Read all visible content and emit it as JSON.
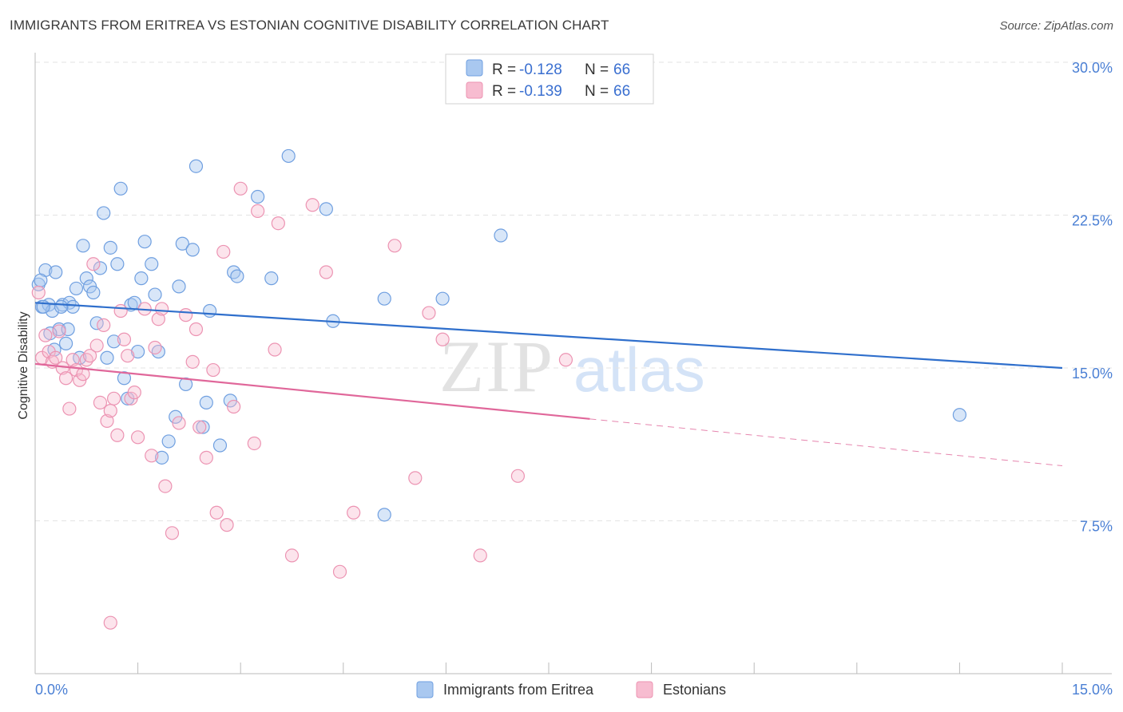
{
  "header": {
    "title": "IMMIGRANTS FROM ERITREA VS ESTONIAN COGNITIVE DISABILITY CORRELATION CHART",
    "source": "Source: ZipAtlas.com"
  },
  "watermark": {
    "zip": "ZIP",
    "atlas": "atlas"
  },
  "legend": {
    "r_label": "R =",
    "n_label": "N =",
    "series": [
      {
        "r": "-0.128",
        "n": "66"
      },
      {
        "r": "-0.139",
        "n": "66"
      }
    ]
  },
  "colors": {
    "blue_fill": "#a9c8f0",
    "blue_stroke": "#6f9fe0",
    "blue_line": "#2f6fcc",
    "pink_fill": "#f7bcd0",
    "pink_stroke": "#ec93b2",
    "pink_line": "#e0679a"
  },
  "chart_data": {
    "type": "scatter",
    "title": "IMMIGRANTS FROM ERITREA VS ESTONIAN COGNITIVE DISABILITY CORRELATION CHART",
    "xlabel": "",
    "ylabel": "Cognitive Disability",
    "xlim": [
      0,
      15
    ],
    "ylim": [
      0,
      30
    ],
    "x_tick_labels": [
      "0.0%",
      "15.0%"
    ],
    "y_ticks": [
      7.5,
      15.0,
      22.5,
      30.0
    ],
    "y_tick_labels": [
      "7.5%",
      "15.0%",
      "22.5%",
      "30.0%"
    ],
    "series": [
      {
        "name": "Immigrants from Eritrea",
        "trend": {
          "x": [
            0,
            15
          ],
          "y": [
            18.2,
            15.0
          ]
        },
        "points": [
          [
            0.05,
            19.1
          ],
          [
            0.1,
            18.0
          ],
          [
            0.15,
            19.8
          ],
          [
            0.2,
            18.1
          ],
          [
            0.25,
            17.8
          ],
          [
            0.3,
            19.7
          ],
          [
            0.35,
            16.9
          ],
          [
            0.4,
            18.1
          ],
          [
            0.45,
            16.2
          ],
          [
            0.5,
            18.2
          ],
          [
            0.55,
            18.0
          ],
          [
            0.6,
            18.9
          ],
          [
            0.65,
            15.5
          ],
          [
            0.7,
            21.0
          ],
          [
            0.75,
            19.4
          ],
          [
            0.8,
            19.0
          ],
          [
            0.85,
            18.7
          ],
          [
            0.9,
            17.2
          ],
          [
            0.95,
            19.9
          ],
          [
            1.0,
            22.6
          ],
          [
            1.05,
            15.5
          ],
          [
            1.1,
            20.9
          ],
          [
            1.15,
            16.3
          ],
          [
            1.2,
            20.1
          ],
          [
            1.25,
            23.8
          ],
          [
            1.3,
            14.5
          ],
          [
            1.35,
            13.5
          ],
          [
            1.4,
            18.1
          ],
          [
            1.45,
            18.2
          ],
          [
            1.5,
            15.8
          ],
          [
            1.55,
            19.4
          ],
          [
            1.6,
            21.2
          ],
          [
            1.7,
            20.1
          ],
          [
            1.75,
            18.6
          ],
          [
            1.8,
            15.8
          ],
          [
            1.85,
            10.6
          ],
          [
            1.95,
            11.4
          ],
          [
            2.05,
            12.6
          ],
          [
            2.1,
            19.0
          ],
          [
            2.15,
            21.1
          ],
          [
            2.2,
            14.2
          ],
          [
            2.3,
            20.8
          ],
          [
            2.35,
            24.9
          ],
          [
            2.45,
            12.1
          ],
          [
            2.5,
            13.3
          ],
          [
            2.55,
            17.8
          ],
          [
            2.7,
            11.2
          ],
          [
            2.85,
            13.4
          ],
          [
            2.9,
            19.7
          ],
          [
            2.95,
            19.5
          ],
          [
            3.25,
            23.4
          ],
          [
            3.45,
            19.4
          ],
          [
            3.7,
            25.4
          ],
          [
            4.25,
            22.8
          ],
          [
            4.35,
            17.3
          ],
          [
            5.1,
            18.4
          ],
          [
            5.1,
            7.8
          ],
          [
            5.95,
            18.4
          ],
          [
            6.8,
            21.5
          ],
          [
            13.5,
            12.7
          ],
          [
            0.08,
            19.3
          ],
          [
            0.12,
            18.0
          ],
          [
            0.22,
            16.7
          ],
          [
            0.28,
            15.9
          ],
          [
            0.38,
            18.0
          ],
          [
            0.48,
            16.9
          ]
        ]
      },
      {
        "name": "Estonians",
        "trend": {
          "x": [
            0,
            8.1
          ],
          "y": [
            15.2,
            12.5
          ]
        },
        "trend_dashed": {
          "x": [
            8.1,
            15
          ],
          "y": [
            12.5,
            10.2
          ]
        },
        "points": [
          [
            0.05,
            18.7
          ],
          [
            0.1,
            15.5
          ],
          [
            0.15,
            16.6
          ],
          [
            0.2,
            15.8
          ],
          [
            0.25,
            15.3
          ],
          [
            0.3,
            15.5
          ],
          [
            0.35,
            16.8
          ],
          [
            0.4,
            15.0
          ],
          [
            0.45,
            14.5
          ],
          [
            0.5,
            13.0
          ],
          [
            0.55,
            15.4
          ],
          [
            0.6,
            14.9
          ],
          [
            0.65,
            14.4
          ],
          [
            0.7,
            14.7
          ],
          [
            0.75,
            15.4
          ],
          [
            0.8,
            15.6
          ],
          [
            0.85,
            20.1
          ],
          [
            0.9,
            16.1
          ],
          [
            0.95,
            13.3
          ],
          [
            1.0,
            17.1
          ],
          [
            1.05,
            12.4
          ],
          [
            1.1,
            12.9
          ],
          [
            1.15,
            13.5
          ],
          [
            1.2,
            11.7
          ],
          [
            1.25,
            17.8
          ],
          [
            1.3,
            16.4
          ],
          [
            1.35,
            15.6
          ],
          [
            1.4,
            13.5
          ],
          [
            1.45,
            13.8
          ],
          [
            1.5,
            11.6
          ],
          [
            1.6,
            17.9
          ],
          [
            1.7,
            10.7
          ],
          [
            1.75,
            16.0
          ],
          [
            1.8,
            17.4
          ],
          [
            1.85,
            17.9
          ],
          [
            1.9,
            9.2
          ],
          [
            2.0,
            6.9
          ],
          [
            2.1,
            12.3
          ],
          [
            2.2,
            17.6
          ],
          [
            2.3,
            15.3
          ],
          [
            2.35,
            16.9
          ],
          [
            2.4,
            12.1
          ],
          [
            2.5,
            10.6
          ],
          [
            2.6,
            14.9
          ],
          [
            2.65,
            7.9
          ],
          [
            2.75,
            20.7
          ],
          [
            2.8,
            7.3
          ],
          [
            2.9,
            13.1
          ],
          [
            3.0,
            23.8
          ],
          [
            3.2,
            11.3
          ],
          [
            3.25,
            22.7
          ],
          [
            3.5,
            15.9
          ],
          [
            3.55,
            22.1
          ],
          [
            3.75,
            5.8
          ],
          [
            4.05,
            23.0
          ],
          [
            4.25,
            19.7
          ],
          [
            4.45,
            5.0
          ],
          [
            4.65,
            7.9
          ],
          [
            5.25,
            21.0
          ],
          [
            5.55,
            9.6
          ],
          [
            5.75,
            17.7
          ],
          [
            5.95,
            16.4
          ],
          [
            6.5,
            5.8
          ],
          [
            7.05,
            9.7
          ],
          [
            7.75,
            15.4
          ],
          [
            1.1,
            2.5
          ]
        ]
      }
    ]
  }
}
